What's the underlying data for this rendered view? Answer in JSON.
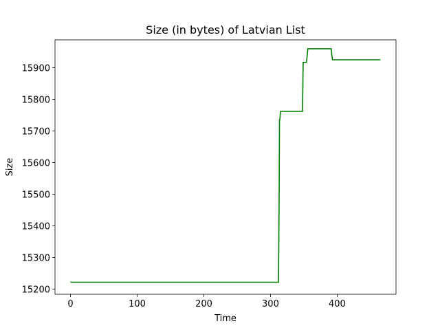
{
  "chart_data": {
    "type": "line",
    "title": "Size (in bytes) of Latvian List",
    "xlabel": "Time",
    "ylabel": "Size",
    "xlim": [
      -23.25,
      488.25
    ],
    "ylim": [
      15184,
      15988
    ],
    "xticks": [
      0,
      100,
      200,
      300,
      400
    ],
    "yticks": [
      15200,
      15300,
      15400,
      15500,
      15600,
      15700,
      15800,
      15900
    ],
    "grid": false,
    "series": [
      {
        "color": "#008000",
        "x": [
          0,
          312,
          313,
          313.5,
          314,
          315,
          316,
          348,
          349,
          350,
          354,
          356,
          357,
          391,
          392,
          393,
          394,
          465
        ],
        "y": [
          15222,
          15222,
          15500,
          15735,
          15735,
          15762,
          15762,
          15762,
          15917,
          15917,
          15917,
          15960,
          15960,
          15960,
          15940,
          15925,
          15925,
          15925
        ]
      }
    ]
  }
}
